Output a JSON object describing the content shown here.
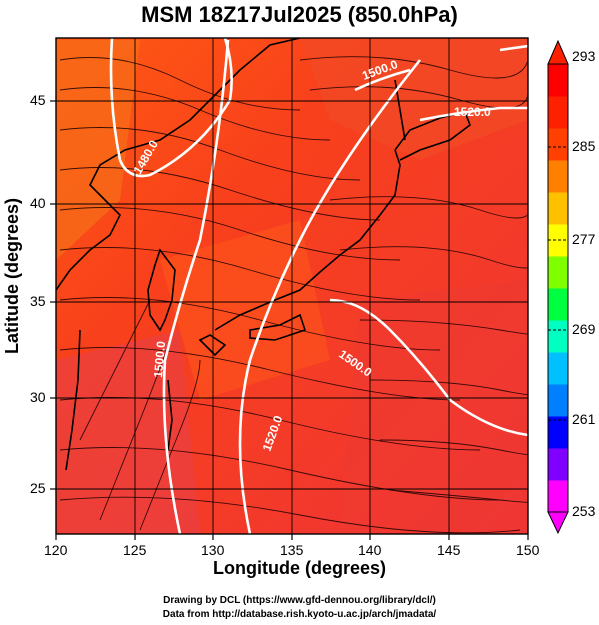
{
  "title": "MSM 18Z17Jul2025 (850.0hPa)",
  "x_axis": {
    "label": "Longitude (degrees)",
    "ticks": [
      "120",
      "125",
      "130",
      "135",
      "140",
      "145",
      "150"
    ],
    "range": [
      120,
      150
    ]
  },
  "y_axis": {
    "label": "Latitude  (degrees)",
    "ticks": [
      "25",
      "30",
      "35",
      "40",
      "45"
    ],
    "range": [
      22.4,
      47.6
    ]
  },
  "colorbar": {
    "ticks": [
      "293",
      "285",
      "277",
      "269",
      "261",
      "253"
    ],
    "range": [
      253,
      293
    ],
    "colors": [
      "#ff00ff",
      "#8000ff",
      "#0000ff",
      "#0080ff",
      "#00c0ff",
      "#00ffc0",
      "#00ff40",
      "#80ff00",
      "#ffff00",
      "#ffc000",
      "#ff8000",
      "#ff4000",
      "#ff2000",
      "#ff0000"
    ]
  },
  "contour_labels": [
    "1480.0",
    "1500.0",
    "1500.0",
    "1520.0",
    "1520.0",
    "1500.0",
    "1520.0"
  ],
  "credits": {
    "line1": "Drawing by DCL (https://www.gfd-dennou.org/library/dcl/)",
    "line2": "Data from http://database.rish.kyoto-u.ac.jp/arch/jmadata/"
  }
}
